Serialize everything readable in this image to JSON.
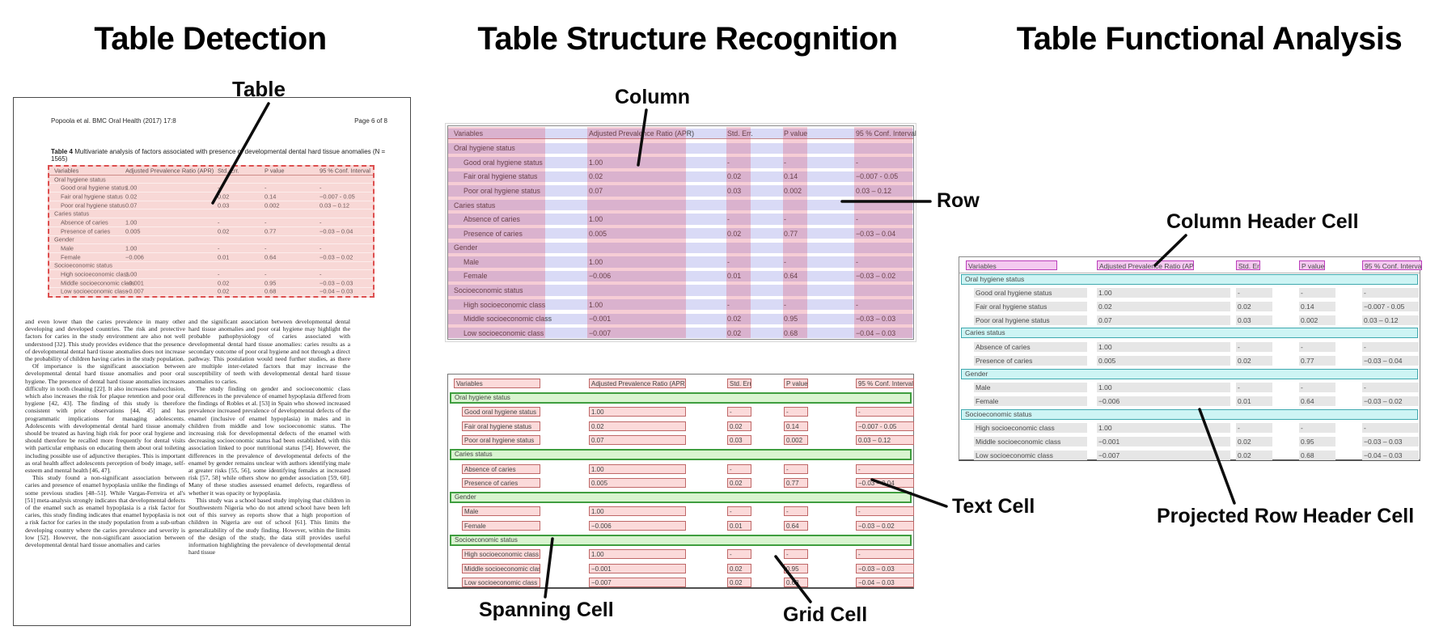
{
  "panels": {
    "detection": {
      "title": "Table Detection",
      "labels": {
        "table": "Table"
      }
    },
    "structure": {
      "title": "Table Structure Recognition",
      "labels": {
        "column": "Column",
        "row": "Row",
        "spanning_cell": "Spanning Cell",
        "text_cell": "Text Cell",
        "grid_cell": "Grid Cell"
      }
    },
    "functional": {
      "title": "Table Functional Analysis",
      "labels": {
        "column_header_cell": "Column Header Cell",
        "projected_row_header_cell": "Projected Row Header Cell"
      }
    }
  },
  "document": {
    "header": "Popoola et al. BMC Oral Health  (2017) 17:8",
    "page": "Page 6 of 8",
    "body_left": [
      "and even lower than the caries prevalence in many other developing and developed countries. The risk and protective factors for caries in the study environment are also not well understood [32]. This study provides evidence that the presence of developmental dental hard tissue anomalies does not increase the probability of children having caries in the study population.",
      "Of importance is the significant association between developmental dental hard tissue anomalies and poor oral hygiene. The presence of dental hard tissue anomalies increases difficulty in tooth cleaning [22]. It also increases malocclusion, which also increases the risk for plaque retention and poor oral hygiene [42, 43]. The finding of this study is therefore consistent with prior observations [44, 45] and has programmatic implications for managing adolescents. Adolescents with developmental dental hard tissue anomaly should be treated as having high risk for poor oral hygiene and should therefore be recalled more frequently for dental visits with particular emphasis on educating them about oral toileting including possible use of adjunctive therapies. This is important as oral health affect adolescents perception of body image, self-esteem and mental health [46, 47].",
      "This study found a non-significant association between caries and presence of enamel hypoplasia unlike the findings of some previous studies [48–51]. While Vargas-Ferreira et al's [51] meta-analysis strongly indicates that developmental defects of the enamel such as enamel hypoplasia is a risk factor for caries, this study finding indicates that enamel hypoplasia is not a risk factor for caries in the study population from a sub-urban developing country where the caries prevalence and severity is low [52]. However, the non-significant association between developmental dental hard tissue anomalies and caries"
    ],
    "body_right": [
      "and the significant association between developmental dental hard tissue anomalies and poor oral hygiene may highlight the probable pathophysiology of caries associated with developmental dental hard tissue anomalies: caries results as a secondary outcome of poor oral hygiene and not through a direct pathway. This postulation would need further studies, as there are multiple inter-related factors that may increase the susceptibility of teeth with developmental dental hard tissue anomalies to caries.",
      "The study finding on gender and socioeconomic class differences in the prevalence of enamel hypoplasia differed from the findings of Robles et al. [53] in Spain who showed increased prevalence increased prevalence of developmental defects of the enamel (inclusive of enamel hypoplasia) in males and in children from middle and low socioeconomic status. The increasing risk for developmental defects of the enamel with decreasing socioeconomic status had been established, with this association linked to poor nutritional status [54]. However, the differences in the prevalence of developmental defects of the enamel by gender remains unclear with authors identifying male at greater risks [55, 56], some identifying females at increased risk [57, 58] while others show no gender association [59, 60]. Many of these studies assessed enamel defects, regardless of whether it was opacity or hypoplasia.",
      "This study was a school based study implying that children in Southwestern Nigeria who do not attend school have been left out of this survey as reports show that a high proportion of children in Nigeria are out of school [61]. This limits the generalizability of the study finding. However, within the limits of the design of the study, the data still provides useful information highlighting the prevalence of developmental dental hard tissue"
    ]
  },
  "table": {
    "caption_label": "Table 4",
    "caption_text": "Multivariate analysis of factors associated with presence of developmental dental hard tissue anomalies (N = 1565)",
    "columns": [
      "Variables",
      "Adjusted Prevalence Ratio (APR)",
      "Std. Err.",
      "P value",
      "95 % Conf. Interval"
    ],
    "rows": [
      {
        "type": "section",
        "label": "Oral hygiene status"
      },
      {
        "type": "data",
        "label": "Good oral hygiene status",
        "values": [
          "1.00",
          "-",
          "-",
          "-"
        ]
      },
      {
        "type": "data",
        "label": "Fair oral hygiene status",
        "values": [
          "0.02",
          "0.02",
          "0.14",
          "−0.007 - 0.05"
        ]
      },
      {
        "type": "data",
        "label": "Poor oral hygiene status",
        "values": [
          "0.07",
          "0.03",
          "0.002",
          "0.03 – 0.12"
        ]
      },
      {
        "type": "section",
        "label": "Caries status"
      },
      {
        "type": "data",
        "label": "Absence of caries",
        "values": [
          "1.00",
          "-",
          "-",
          "-"
        ]
      },
      {
        "type": "data",
        "label": "Presence of caries",
        "values": [
          "0.005",
          "0.02",
          "0.77",
          "−0.03 – 0.04"
        ]
      },
      {
        "type": "section",
        "label": "Gender"
      },
      {
        "type": "data",
        "label": "Male",
        "values": [
          "1.00",
          "-",
          "-",
          "-"
        ]
      },
      {
        "type": "data",
        "label": "Female",
        "values": [
          "−0.006",
          "0.01",
          "0.64",
          "−0.03 – 0.02"
        ]
      },
      {
        "type": "section",
        "label": "Socioeconomic status"
      },
      {
        "type": "data",
        "label": "High socioeconomic class",
        "values": [
          "1.00",
          "-",
          "-",
          "-"
        ]
      },
      {
        "type": "data",
        "label": "Middle socioeconomic class",
        "values": [
          "−0.001",
          "0.02",
          "0.95",
          "−0.03 – 0.03"
        ]
      },
      {
        "type": "data",
        "label": "Low socioeconomic class",
        "values": [
          "−0.007",
          "0.02",
          "0.68",
          "−0.04 – 0.03"
        ]
      }
    ]
  },
  "colors": {
    "detection_fill": "#f8d8d6",
    "detection_border": "#dd4f4f",
    "row_band": "#dcdef4",
    "column_band": "#f2c9d2",
    "text_cell_fill": "#fbdada",
    "text_cell_border": "#bf6868",
    "spanning_fill": "#d9f4d0",
    "spanning_border": "#3f9e3f",
    "column_header_fill": "#f4c9f0",
    "column_header_border": "#bb3fbb",
    "projected_header_fill": "#cdf4f4",
    "projected_header_border": "#3fa9af"
  }
}
